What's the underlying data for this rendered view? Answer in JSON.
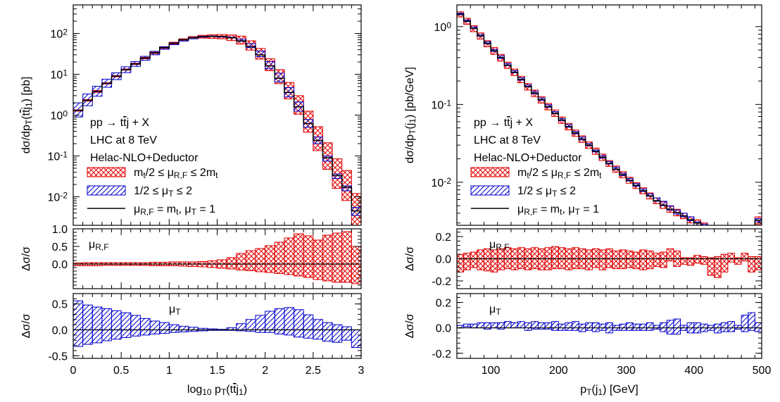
{
  "colors": {
    "scale_band": "#e00000",
    "shower_band": "#0000cc",
    "central": "#000000"
  },
  "chart_data": [
    {
      "name": "left",
      "type": "line",
      "x_scale": "linear",
      "y_scale": "log",
      "xlabel": "log10 pT(tt̄j1)",
      "ylabel": "dσ/dpT(tt̄j1) [pb]",
      "xlim": [
        0,
        3
      ],
      "ylim": [
        0.002,
        500
      ],
      "x_ticks": [
        "0",
        "0.5",
        "1",
        "1.5",
        "2",
        "2.5",
        "3"
      ],
      "y_ticks": [
        "10-2",
        "10-1",
        "100",
        "101",
        "102"
      ],
      "annotations": [
        "pp → tt̄j + X",
        "LHC at 8 TeV",
        "Helac-NLO+Deductor"
      ],
      "legend": [
        {
          "label": "mt/2 ≤ μR,F ≤ 2mt",
          "style": "crosshatch",
          "color": "#e00000"
        },
        {
          "label": "1/2 ≤ μT ≤ 2",
          "style": "hatch",
          "color": "#0000cc"
        },
        {
          "label": "μR,F = mt, μT = 1",
          "style": "line",
          "color": "#000000"
        }
      ],
      "bins": {
        "x_edges": [
          0,
          0.1,
          0.2,
          0.3,
          0.4,
          0.5,
          0.6,
          0.7,
          0.8,
          0.9,
          1.0,
          1.1,
          1.2,
          1.3,
          1.4,
          1.5,
          1.6,
          1.7,
          1.8,
          1.9,
          2.0,
          2.1,
          2.2,
          2.3,
          2.4,
          2.5,
          2.6,
          2.7,
          2.8,
          2.9,
          3.0
        ],
        "central": [
          1.3,
          2.3,
          3.8,
          6,
          9,
          13,
          18,
          25,
          34,
          45,
          58,
          70,
          79,
          84,
          85,
          84,
          78,
          66,
          48,
          30,
          16,
          8,
          3.6,
          1.6,
          0.62,
          0.24,
          0.09,
          0.033,
          0.017,
          0.0045
        ],
        "scale_unc": {
          "lo": [
            1.25,
            2.2,
            3.6,
            5.8,
            8.7,
            12.6,
            17.4,
            24,
            32,
            43,
            55,
            66,
            74,
            77,
            76,
            74,
            67,
            55,
            39,
            23.5,
            12.2,
            5.9,
            2.5,
            1.05,
            0.38,
            0.135,
            0.047,
            0.016,
            0.0081,
            0.002
          ],
          "hi": [
            1.35,
            2.4,
            4.0,
            6.2,
            9.3,
            13.5,
            18.7,
            26,
            36,
            47.5,
            61,
            74,
            84,
            90,
            93,
            94,
            92,
            86,
            66,
            43,
            24,
            13,
            6.3,
            3.0,
            1.25,
            0.52,
            0.21,
            0.085,
            0.044,
            0.012
          ]
        },
        "shower_unc": {
          "lo": [
            0.9,
            1.7,
            2.9,
            4.8,
            7.4,
            11,
            15.6,
            22,
            30,
            41,
            53,
            65,
            74,
            81,
            85,
            84,
            78,
            64,
            45,
            27,
            13.6,
            6.5,
            2.8,
            1.25,
            0.5,
            0.2,
            0.075,
            0.028,
            0.014,
            0.0035
          ],
          "hi": [
            2.0,
            3.3,
            5.1,
            7.6,
            10.9,
            15.3,
            20.5,
            27.5,
            36.5,
            47,
            59,
            71,
            80,
            86,
            87,
            85,
            81,
            72,
            56,
            37,
            20.5,
            10.6,
            4.7,
            2.1,
            0.78,
            0.29,
            0.1,
            0.036,
            0.0185,
            0.0055
          ]
        }
      },
      "ratio_panels": [
        {
          "label": "μR,F",
          "ylabel": "Δσ/σ",
          "ylim": [
            -0.7,
            1.0
          ],
          "y_ticks": [
            "0.0",
            "0.5",
            "1.0"
          ],
          "lo": [
            -0.05,
            -0.05,
            -0.05,
            -0.04,
            -0.04,
            -0.04,
            -0.04,
            -0.04,
            -0.05,
            -0.05,
            -0.05,
            -0.06,
            -0.07,
            -0.08,
            -0.1,
            -0.12,
            -0.14,
            -0.17,
            -0.19,
            -0.22,
            -0.24,
            -0.27,
            -0.3,
            -0.34,
            -0.38,
            -0.44,
            -0.48,
            -0.52,
            -0.52,
            -0.56
          ],
          "hi": [
            0.03,
            0.04,
            0.04,
            0.04,
            0.04,
            0.04,
            0.04,
            0.04,
            0.05,
            0.05,
            0.06,
            0.06,
            0.06,
            0.07,
            0.09,
            0.12,
            0.18,
            0.3,
            0.38,
            0.44,
            0.52,
            0.62,
            0.74,
            0.86,
            0.8,
            0.68,
            0.82,
            0.88,
            0.92,
            0.5
          ]
        },
        {
          "label": "μT",
          "ylabel": "Δσ/σ",
          "ylim": [
            -0.55,
            0.7
          ],
          "y_ticks": [
            "-0.5",
            "0.0",
            "0.5"
          ],
          "lo": [
            -0.32,
            -0.28,
            -0.25,
            -0.21,
            -0.18,
            -0.15,
            -0.12,
            -0.1,
            -0.08,
            -0.07,
            -0.05,
            -0.04,
            -0.03,
            -0.02,
            -0.01,
            -0.01,
            -0.01,
            -0.02,
            -0.03,
            -0.05,
            -0.05,
            -0.08,
            -0.1,
            -0.14,
            -0.16,
            -0.18,
            -0.22,
            -0.24,
            -0.2,
            -0.34
          ],
          "hi": [
            0.56,
            0.48,
            0.44,
            0.41,
            0.37,
            0.33,
            0.28,
            0.22,
            0.17,
            0.14,
            0.1,
            0.07,
            0.05,
            0.03,
            0.02,
            0.01,
            0.04,
            0.12,
            0.2,
            0.28,
            0.36,
            0.41,
            0.43,
            0.39,
            0.29,
            0.2,
            0.14,
            0.1,
            0.06,
            0.0
          ]
        }
      ]
    },
    {
      "name": "right",
      "type": "line",
      "x_scale": "linear",
      "y_scale": "log",
      "xlabel": "pT(j1) [GeV]",
      "ylabel": "dσ/dpT(j1) [pb/GeV]",
      "xlim": [
        50,
        500
      ],
      "ylim": [
        0.0028,
        1.9
      ],
      "x_ticks": [
        "100",
        "200",
        "300",
        "400",
        "500"
      ],
      "y_ticks": [
        "10-2",
        "10-1",
        "100"
      ],
      "annotations": [
        "pp → tt̄j + X",
        "LHC at 8 TeV",
        "Helac-NLO+Deductor"
      ],
      "legend": [
        {
          "label": "mt/2 ≤ μR,F ≤ 2mt",
          "style": "crosshatch",
          "color": "#e00000"
        },
        {
          "label": "1/2 ≤ μT ≤ 2",
          "style": "hatch",
          "color": "#0000cc"
        },
        {
          "label": "μR,F = mt, μT = 1",
          "style": "line",
          "color": "#000000"
        }
      ],
      "bins": {
        "x_edges": [
          50,
          60,
          70,
          80,
          90,
          100,
          110,
          120,
          130,
          140,
          150,
          160,
          170,
          180,
          190,
          200,
          210,
          220,
          230,
          240,
          250,
          260,
          270,
          280,
          290,
          300,
          310,
          320,
          330,
          340,
          350,
          360,
          370,
          380,
          390,
          400,
          410,
          420,
          430,
          440,
          450,
          460,
          470,
          480,
          490,
          500
        ],
        "central": [
          1.45,
          1.18,
          0.95,
          0.76,
          0.61,
          0.49,
          0.4,
          0.32,
          0.26,
          0.21,
          0.17,
          0.14,
          0.115,
          0.094,
          0.077,
          0.063,
          0.052,
          0.043,
          0.036,
          0.03,
          0.025,
          0.021,
          0.0175,
          0.0148,
          0.0125,
          0.0106,
          0.0091,
          0.0078,
          0.0067,
          0.0058,
          0.0051,
          0.0045,
          0.0041,
          0.0037,
          0.0033,
          0.003,
          0.0027,
          0.0024,
          0.0022,
          0.002,
          0.0018,
          0.0016,
          0.0015,
          0.0014,
          0.00325
        ],
        "scale_unc": {
          "lo": [
            1.33,
            1.07,
            0.86,
            0.69,
            0.55,
            0.44,
            0.36,
            0.29,
            0.235,
            0.19,
            0.153,
            0.126,
            0.104,
            0.085,
            0.07,
            0.057,
            0.047,
            0.039,
            0.0325,
            0.0272,
            0.0228,
            0.019,
            0.016,
            0.0134,
            0.0114,
            0.0097,
            0.0083,
            0.0071,
            0.0061,
            0.0053,
            0.0046,
            0.0041,
            0.0037,
            0.0034,
            0.003,
            0.0027,
            0.0025,
            0.0022,
            0.002,
            0.0018,
            0.0016,
            0.0015,
            0.0014,
            0.0013,
            0.0029
          ],
          "hi": [
            1.55,
            1.28,
            1.03,
            0.83,
            0.66,
            0.54,
            0.44,
            0.35,
            0.285,
            0.23,
            0.186,
            0.153,
            0.126,
            0.103,
            0.085,
            0.069,
            0.057,
            0.047,
            0.0395,
            0.033,
            0.0275,
            0.023,
            0.019,
            0.0162,
            0.0137,
            0.0116,
            0.0099,
            0.0085,
            0.0073,
            0.0063,
            0.0056,
            0.0049,
            0.0045,
            0.004,
            0.0036,
            0.0033,
            0.003,
            0.0026,
            0.0024,
            0.0022,
            0.002,
            0.0018,
            0.0016,
            0.0015,
            0.0036
          ]
        },
        "shower_unc": {
          "lo": [
            1.42,
            1.16,
            0.94,
            0.75,
            0.6,
            0.48,
            0.39,
            0.315,
            0.255,
            0.205,
            0.168,
            0.137,
            0.113,
            0.092,
            0.076,
            0.062,
            0.051,
            0.042,
            0.035,
            0.0295,
            0.0245,
            0.0205,
            0.0172,
            0.0145,
            0.0122,
            0.0104,
            0.0089,
            0.0076,
            0.0066,
            0.0057,
            0.005,
            0.0044,
            0.0039,
            0.0036,
            0.0032,
            0.0028,
            0.0026,
            0.0023,
            0.0021,
            0.0019,
            0.0017,
            0.00155,
            0.0014,
            0.0013,
            0.0031
          ],
          "hi": [
            1.49,
            1.22,
            0.99,
            0.79,
            0.64,
            0.51,
            0.42,
            0.335,
            0.272,
            0.22,
            0.178,
            0.147,
            0.121,
            0.099,
            0.081,
            0.066,
            0.055,
            0.045,
            0.038,
            0.0315,
            0.026,
            0.022,
            0.0185,
            0.0156,
            0.0131,
            0.0112,
            0.0096,
            0.0082,
            0.0071,
            0.0063,
            0.0057,
            0.005,
            0.0044,
            0.004,
            0.0036,
            0.0031,
            0.0029,
            0.0025,
            0.0023,
            0.0021,
            0.0019,
            0.0017,
            0.0016,
            0.0016,
            0.0034
          ]
        }
      },
      "ratio_panels": [
        {
          "label": "μR,F",
          "ylabel": "Δσ/σ",
          "ylim": [
            -0.27,
            0.27
          ],
          "y_ticks": [
            "-0.2",
            "0.0",
            "0.2"
          ],
          "lo": [
            -0.12,
            -0.1,
            -0.08,
            -0.1,
            -0.11,
            -0.12,
            -0.1,
            -0.09,
            -0.1,
            -0.09,
            -0.1,
            -0.09,
            -0.1,
            -0.1,
            -0.09,
            -0.09,
            -0.1,
            -0.09,
            -0.09,
            -0.1,
            -0.08,
            -0.1,
            -0.08,
            -0.09,
            -0.09,
            -0.08,
            -0.09,
            -0.1,
            -0.09,
            -0.07,
            -0.08,
            -0.02,
            -0.07,
            -0.05,
            -0.06,
            -0.04,
            -0.05,
            -0.15,
            -0.17,
            -0.12,
            -0.03,
            -0.05,
            -0.02,
            -0.12,
            -0.1
          ],
          "hi": [
            0.04,
            0.05,
            0.06,
            0.08,
            0.09,
            0.08,
            0.09,
            0.1,
            0.09,
            0.1,
            0.09,
            0.1,
            0.09,
            0.1,
            0.11,
            0.1,
            0.09,
            0.1,
            0.09,
            0.08,
            0.09,
            0.08,
            0.09,
            0.07,
            0.08,
            0.07,
            0.06,
            0.08,
            0.07,
            0.05,
            0.06,
            0.09,
            0.07,
            0.01,
            0.01,
            0.03,
            0.02,
            0.01,
            0.02,
            0.04,
            0.05,
            0.01,
            0.05,
            0.02,
            0.02
          ]
        },
        {
          "label": "μT",
          "ylabel": "Δσ/σ",
          "ylim": [
            -0.24,
            0.27
          ],
          "y_ticks": [
            "-0.2",
            "0.0",
            "0.2"
          ],
          "lo": [
            0.0,
            0.01,
            0.0,
            0.0,
            -0.01,
            0.0,
            -0.01,
            0.0,
            0.0,
            0.0,
            -0.02,
            -0.01,
            -0.01,
            -0.01,
            -0.02,
            -0.02,
            -0.02,
            -0.02,
            -0.03,
            -0.02,
            -0.03,
            -0.02,
            -0.04,
            -0.02,
            -0.02,
            -0.02,
            -0.02,
            -0.02,
            -0.02,
            -0.01,
            -0.03,
            -0.05,
            -0.05,
            -0.02,
            -0.04,
            -0.04,
            -0.03,
            -0.02,
            -0.04,
            -0.03,
            -0.03,
            -0.01,
            -0.03,
            -0.02,
            -0.03
          ],
          "hi": [
            0.02,
            0.03,
            0.03,
            0.04,
            0.04,
            0.04,
            0.04,
            0.05,
            0.04,
            0.05,
            0.04,
            0.05,
            0.04,
            0.04,
            0.05,
            0.03,
            0.04,
            0.05,
            0.03,
            0.04,
            0.04,
            0.03,
            0.04,
            0.02,
            0.03,
            0.04,
            0.03,
            0.03,
            0.04,
            0.02,
            0.04,
            0.06,
            0.07,
            0.02,
            0.04,
            0.04,
            0.03,
            0.02,
            0.03,
            0.04,
            0.05,
            0.02,
            0.1,
            0.12,
            0.04
          ]
        }
      ]
    }
  ]
}
